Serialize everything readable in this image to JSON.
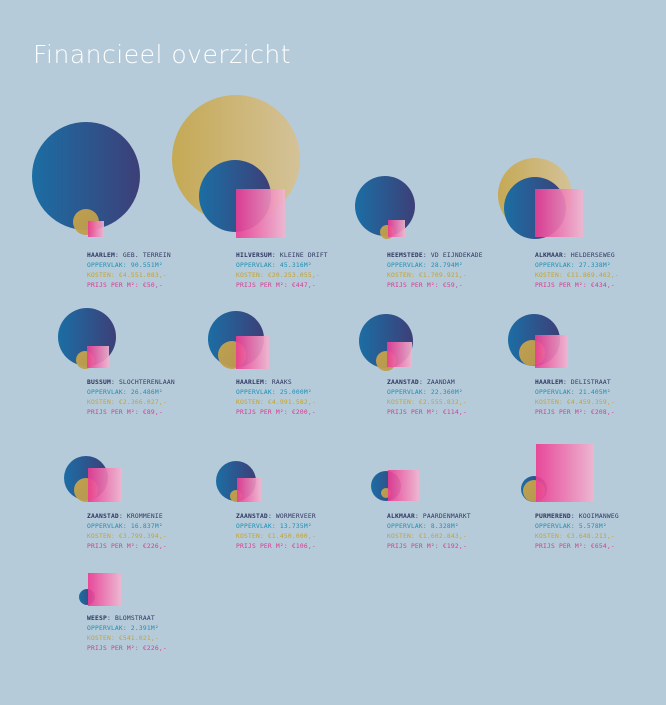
{
  "title": "Financieel overzicht",
  "colors": {
    "background": "#b6cbd9",
    "circle_large": [
      "#c5a955",
      "#d4c298"
    ],
    "circle_blue": [
      "#1b6ea4",
      "#3d3f78"
    ],
    "circle_small_gold": [
      "#c9a44a",
      "#b99a4e"
    ],
    "square_pink": [
      "#ed3a93",
      "#f2b4cf"
    ],
    "text_city": "#2d3560",
    "text_area": "#1d8fb5",
    "text_cost": "#c4a230",
    "text_price": "#d63a92"
  },
  "items": [
    {
      "city": "HAARLEM",
      "place": "GEB. TERREIN",
      "area": "OPPERVLAK: 90.551M²",
      "cost": "KOSTEN: €4.551.083,-",
      "price": "PRIJS PER M²: €50,-"
    },
    {
      "city": "HILVERSUM",
      "place": "KLEINE DRIFT",
      "area": "OPPERVLAK: 45.316M²",
      "cost": "KOSTEN: €20.253.055,-",
      "price": "PRIJS PER M²: €447,-"
    },
    {
      "city": "HEEMSTEDE",
      "place": "VD EIJNDEKADE",
      "area": "OPPERVLAK: 28.794M²",
      "cost": "KOSTEN: €1.709.921,-",
      "price": "PRIJS PER M²: €59,-"
    },
    {
      "city": "ALKMAAR",
      "place": "HELDERSEWEG",
      "area": "OPPERVLAK: 27.338M²",
      "cost": "KOSTEN: €11.869.462,-",
      "price": "PRIJS PER M²: €434,-"
    },
    {
      "city": "BUSSUM",
      "place": "SLOCHTERENLAAN",
      "area": "OPPERVLAK: 26.486M²",
      "cost": "KOSTEN: €2.366.027,-",
      "price": "PRIJS PER M²: €89,-"
    },
    {
      "city": "HAARLEM",
      "place": "RAAKS",
      "area": "OPPERVLAK: 25.000M²",
      "cost": "KOSTEN: €4.991.582,-",
      "price": "PRIJS PER M²: €200,-"
    },
    {
      "city": "ZAANSTAD",
      "place": "ZAANDAM",
      "area": "OPPERVLAK: 22.360M²",
      "cost": "KOSTEN: €2.555.832,-",
      "price": "PRIJS PER M²: €114,-"
    },
    {
      "city": "HAARLEM",
      "place": "DELISTRAAT",
      "area": "OPPERVLAK: 21.405M²",
      "cost": "KOSTEN: €4.459.359,-",
      "price": "PRIJS PER M²: €208,-"
    },
    {
      "city": "ZAANSTAD",
      "place": "KROMMENIE",
      "area": "OPPERVLAK: 16.837M²",
      "cost": "KOSTEN: €3.799.394,-",
      "price": "PRIJS PER M²: €226,-"
    },
    {
      "city": "ZAANSTAD",
      "place": "WORMERVEER",
      "area": "OPPERVLAK: 13.735M²",
      "cost": "KOSTEN: €1.450.000,-",
      "price": "PRIJS PER M²: €106,-"
    },
    {
      "city": "ALKMAAR",
      "place": "PAARDENMARKT",
      "area": "OPPERVLAK: 8.328M²",
      "cost": "KOSTEN: €1.602.843,-",
      "price": "PRIJS PER M²: €192,-"
    },
    {
      "city": "PURMEREND",
      "place": "KOOIMANWEG",
      "area": "OPPERVLAK: 5.578M²",
      "cost": "KOSTEN: €3.648.213,-",
      "price": "PRIJS PER M²: €654,-"
    },
    {
      "city": "WEESP",
      "place": "BLOMSTRAAT",
      "area": "OPPERVLAK: 2.391M²",
      "cost": "KOSTEN: €541.021,-",
      "price": "PRIJS PER M²: €226,-"
    }
  ]
}
